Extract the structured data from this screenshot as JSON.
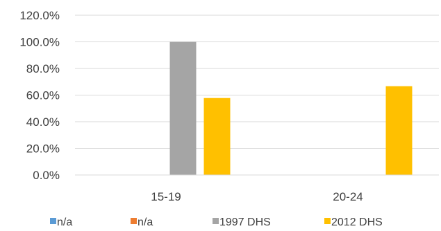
{
  "chart_data": {
    "type": "bar",
    "title": "",
    "xlabel": "",
    "ylabel": "",
    "categories": [
      "15-19",
      "20-24"
    ],
    "ylim": [
      0,
      120
    ],
    "yticks": [
      0,
      20,
      40,
      60,
      80,
      100,
      120
    ],
    "ytick_labels": [
      "0.0%",
      "20.0%",
      "40.0%",
      "60.0%",
      "80.0%",
      "100.0%",
      "120.0%"
    ],
    "grid": true,
    "legend_position": "bottom",
    "series": [
      {
        "name": "n/a",
        "color": "#5b9bd5",
        "values": [
          null,
          null
        ]
      },
      {
        "name": "n/a",
        "color": "#ed7d31",
        "values": [
          null,
          null
        ]
      },
      {
        "name": "1997 DHS",
        "color": "#a5a5a5",
        "values": [
          100.0,
          null
        ]
      },
      {
        "name": "2012 DHS",
        "color": "#ffc000",
        "values": [
          57.8,
          66.7
        ]
      }
    ]
  }
}
